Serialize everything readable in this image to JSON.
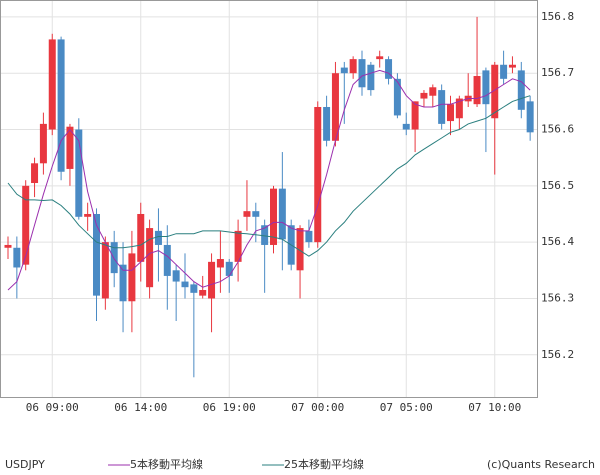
{
  "chart_data": {
    "type": "candlestick",
    "symbol": "USDJPY",
    "credit": "(c)Quants Research",
    "categories": [
      null,
      null,
      null,
      null,
      null,
      "06 09:00",
      null,
      null,
      null,
      null,
      null,
      null,
      null,
      null,
      null,
      "06 14:00",
      null,
      null,
      null,
      null,
      null,
      null,
      null,
      null,
      null,
      "06 19:00",
      null,
      null,
      null,
      null,
      null,
      null,
      null,
      null,
      null,
      "07 00:00",
      null,
      null,
      null,
      null,
      null,
      null,
      null,
      null,
      null,
      "07 05:00",
      null,
      null,
      null,
      null,
      null,
      null,
      null,
      null,
      null,
      "07 10:00",
      null,
      null,
      null,
      null
    ],
    "open": [
      156.39,
      156.39,
      156.36,
      156.505,
      156.54,
      156.6,
      156.76,
      156.53,
      156.6,
      156.445,
      156.45,
      156.3,
      156.4,
      156.36,
      156.295,
      156.365,
      156.32,
      156.42,
      156.395,
      156.35,
      156.33,
      156.325,
      156.305,
      156.3,
      156.355,
      156.365,
      156.365,
      156.445,
      156.455,
      156.43,
      156.395,
      156.495,
      156.43,
      156.35,
      156.42,
      156.4,
      156.64,
      156.58,
      156.71,
      156.7,
      156.725,
      156.715,
      156.725,
      156.725,
      156.69,
      156.61,
      156.6,
      156.655,
      156.66,
      156.67,
      156.615,
      156.62,
      156.65,
      156.645,
      156.705,
      156.62,
      156.715,
      156.71,
      156.705,
      156.65
    ],
    "high": [
      156.41,
      156.41,
      156.51,
      156.55,
      156.63,
      156.77,
      156.765,
      156.61,
      156.62,
      156.47,
      156.46,
      156.41,
      156.42,
      156.4,
      156.42,
      156.47,
      156.44,
      156.46,
      156.43,
      156.36,
      156.38,
      156.33,
      156.34,
      156.38,
      156.42,
      156.37,
      156.44,
      156.51,
      156.47,
      156.44,
      156.5,
      156.56,
      156.44,
      156.43,
      156.44,
      156.65,
      156.66,
      156.72,
      156.72,
      156.73,
      156.74,
      156.72,
      156.74,
      156.73,
      156.7,
      156.63,
      156.65,
      156.67,
      156.68,
      156.68,
      156.66,
      156.66,
      156.7,
      156.8,
      156.71,
      156.72,
      156.74,
      156.73,
      156.72,
      156.66
    ],
    "low": [
      156.37,
      156.3,
      156.35,
      156.48,
      156.52,
      156.59,
      156.51,
      156.5,
      156.44,
      156.42,
      156.26,
      156.28,
      156.32,
      156.24,
      156.24,
      156.33,
      156.3,
      156.33,
      156.28,
      156.26,
      156.3,
      156.16,
      156.3,
      156.24,
      156.31,
      156.31,
      156.33,
      156.42,
      156.4,
      156.31,
      156.38,
      156.35,
      156.35,
      156.3,
      156.39,
      156.39,
      156.57,
      156.57,
      156.61,
      156.69,
      156.66,
      156.66,
      156.71,
      156.68,
      156.62,
      156.59,
      156.56,
      156.64,
      156.64,
      156.6,
      156.59,
      156.6,
      156.64,
      156.64,
      156.56,
      156.52,
      156.68,
      156.7,
      156.62,
      156.58
    ],
    "close": [
      156.395,
      156.355,
      156.5,
      156.54,
      156.61,
      156.76,
      156.525,
      156.605,
      156.445,
      156.45,
      156.305,
      156.4,
      156.345,
      156.295,
      156.38,
      156.45,
      156.425,
      156.395,
      156.34,
      156.33,
      156.32,
      156.31,
      156.315,
      156.365,
      156.37,
      156.34,
      156.42,
      156.455,
      156.445,
      156.395,
      156.495,
      156.405,
      156.36,
      156.425,
      156.4,
      156.64,
      156.58,
      156.7,
      156.7,
      156.725,
      156.675,
      156.67,
      156.73,
      156.69,
      156.625,
      156.6,
      156.65,
      156.665,
      156.675,
      156.61,
      156.645,
      156.655,
      156.66,
      156.695,
      156.645,
      156.715,
      156.69,
      156.715,
      156.635,
      156.595
    ],
    "up_color": "#e8373f",
    "down_color": "#4a8ac4",
    "lines": [
      {
        "name": "5本移動平均線",
        "color": "#9b2fae",
        "values": [
          156.315,
          156.33,
          156.375,
          156.43,
          156.485,
          156.535,
          156.58,
          156.6,
          156.58,
          156.49,
          156.43,
          156.4,
          156.37,
          156.35,
          156.35,
          156.365,
          156.38,
          156.385,
          156.375,
          156.36,
          156.345,
          156.33,
          156.32,
          156.325,
          156.33,
          156.34,
          156.365,
          156.395,
          156.42,
          156.425,
          156.435,
          156.435,
          156.425,
          156.42,
          156.42,
          156.465,
          156.52,
          156.58,
          156.635,
          156.68,
          156.695,
          156.7,
          156.705,
          156.7,
          156.685,
          156.66,
          156.645,
          156.64,
          156.64,
          156.645,
          156.645,
          156.65,
          156.655,
          156.655,
          156.66,
          156.67,
          156.68,
          156.69,
          156.685,
          156.67
        ]
      },
      {
        "name": "25本移動平均線",
        "color": "#2a7f7f",
        "values": [
          156.505,
          156.485,
          156.475,
          156.475,
          156.474,
          156.475,
          156.465,
          156.45,
          156.43,
          156.415,
          156.4,
          156.395,
          156.39,
          156.39,
          156.392,
          156.395,
          156.405,
          156.41,
          156.41,
          156.415,
          156.415,
          156.415,
          156.42,
          156.42,
          156.42,
          156.418,
          156.416,
          156.415,
          156.413,
          156.411,
          156.409,
          156.405,
          156.395,
          156.385,
          156.375,
          156.385,
          156.4,
          156.42,
          156.435,
          156.455,
          156.47,
          156.485,
          156.5,
          156.515,
          156.53,
          156.54,
          156.555,
          156.565,
          156.575,
          156.585,
          156.595,
          156.6,
          156.61,
          156.615,
          156.62,
          156.63,
          156.64,
          156.65,
          156.655,
          156.66
        ]
      }
    ],
    "ylim": [
      156.125,
      156.83
    ],
    "yticks": [
      156.2,
      156.3,
      156.4,
      156.5,
      156.6,
      156.7,
      156.8
    ],
    "grid": true
  }
}
